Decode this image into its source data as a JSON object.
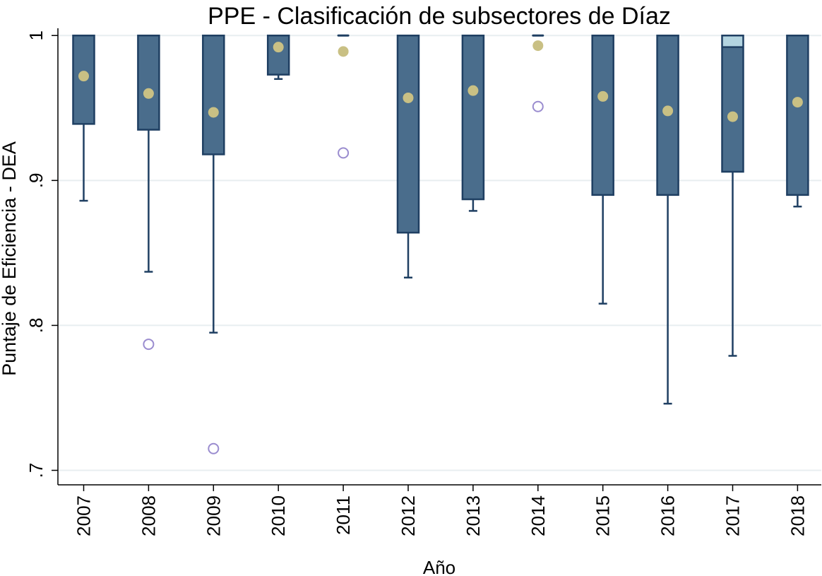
{
  "chart_data": {
    "type": "box",
    "title": "PPE - Clasificación de subsectores de Díaz",
    "xlabel": "Año",
    "ylabel": "Puntaje de Eficiencia - DEA",
    "ylim": [
      0.69,
      1.005
    ],
    "yticks": [
      {
        "value": 0.7,
        "label": ".7"
      },
      {
        "value": 0.8,
        "label": ".8"
      },
      {
        "value": 0.9,
        "label": ".9"
      },
      {
        "value": 1.0,
        "label": "1"
      }
    ],
    "grid": true,
    "categories": [
      "2007",
      "2008",
      "2009",
      "2010",
      "2011",
      "2012",
      "2013",
      "2014",
      "2015",
      "2016",
      "2017",
      "2018"
    ],
    "boxes": [
      {
        "year": "2007",
        "q1": 0.939,
        "median": 1.0,
        "q3": 1.0,
        "whisker_low": 0.886,
        "whisker_high": 1.0,
        "mean": 0.972,
        "outliers": []
      },
      {
        "year": "2008",
        "q1": 0.935,
        "median": 1.0,
        "q3": 1.0,
        "whisker_low": 0.837,
        "whisker_high": 1.0,
        "mean": 0.96,
        "outliers": [
          0.787
        ]
      },
      {
        "year": "2009",
        "q1": 0.918,
        "median": 1.0,
        "q3": 1.0,
        "whisker_low": 0.795,
        "whisker_high": 1.0,
        "mean": 0.947,
        "outliers": [
          0.715
        ]
      },
      {
        "year": "2010",
        "q1": 0.973,
        "median": 1.0,
        "q3": 1.0,
        "whisker_low": 0.97,
        "whisker_high": 1.0,
        "mean": 0.992,
        "outliers": []
      },
      {
        "year": "2011",
        "q1": 1.0,
        "median": 1.0,
        "q3": 1.0,
        "whisker_low": 1.0,
        "whisker_high": 1.0,
        "mean": 0.989,
        "outliers": [
          0.919
        ]
      },
      {
        "year": "2012",
        "q1": 0.864,
        "median": 1.0,
        "q3": 1.0,
        "whisker_low": 0.833,
        "whisker_high": 1.0,
        "mean": 0.957,
        "outliers": []
      },
      {
        "year": "2013",
        "q1": 0.887,
        "median": 1.0,
        "q3": 1.0,
        "whisker_low": 0.879,
        "whisker_high": 1.0,
        "mean": 0.962,
        "outliers": []
      },
      {
        "year": "2014",
        "q1": 1.0,
        "median": 1.0,
        "q3": 1.0,
        "whisker_low": 1.0,
        "whisker_high": 1.0,
        "mean": 0.993,
        "outliers": [
          0.951
        ]
      },
      {
        "year": "2015",
        "q1": 0.89,
        "median": 1.0,
        "q3": 1.0,
        "whisker_low": 0.815,
        "whisker_high": 1.0,
        "mean": 0.958,
        "outliers": []
      },
      {
        "year": "2016",
        "q1": 0.89,
        "median": 1.0,
        "q3": 1.0,
        "whisker_low": 0.746,
        "whisker_high": 1.0,
        "mean": 0.948,
        "outliers": []
      },
      {
        "year": "2017",
        "q1": 0.906,
        "median": 0.992,
        "q3": 1.0,
        "whisker_low": 0.779,
        "whisker_high": 1.0,
        "mean": 0.944,
        "outliers": []
      },
      {
        "year": "2018",
        "q1": 0.89,
        "median": 1.0,
        "q3": 1.0,
        "whisker_low": 0.882,
        "whisker_high": 1.0,
        "mean": 0.954,
        "outliers": []
      }
    ],
    "colors": {
      "box_lower": "#4a6d8c",
      "box_upper": "#b3d4e0",
      "box_border": "#1f3f62",
      "whisker": "#1f3f62",
      "mean_marker": "#c9c084",
      "outlier": "#9a8ccf",
      "grid": "#e8eef0",
      "axis": "#000000"
    }
  }
}
